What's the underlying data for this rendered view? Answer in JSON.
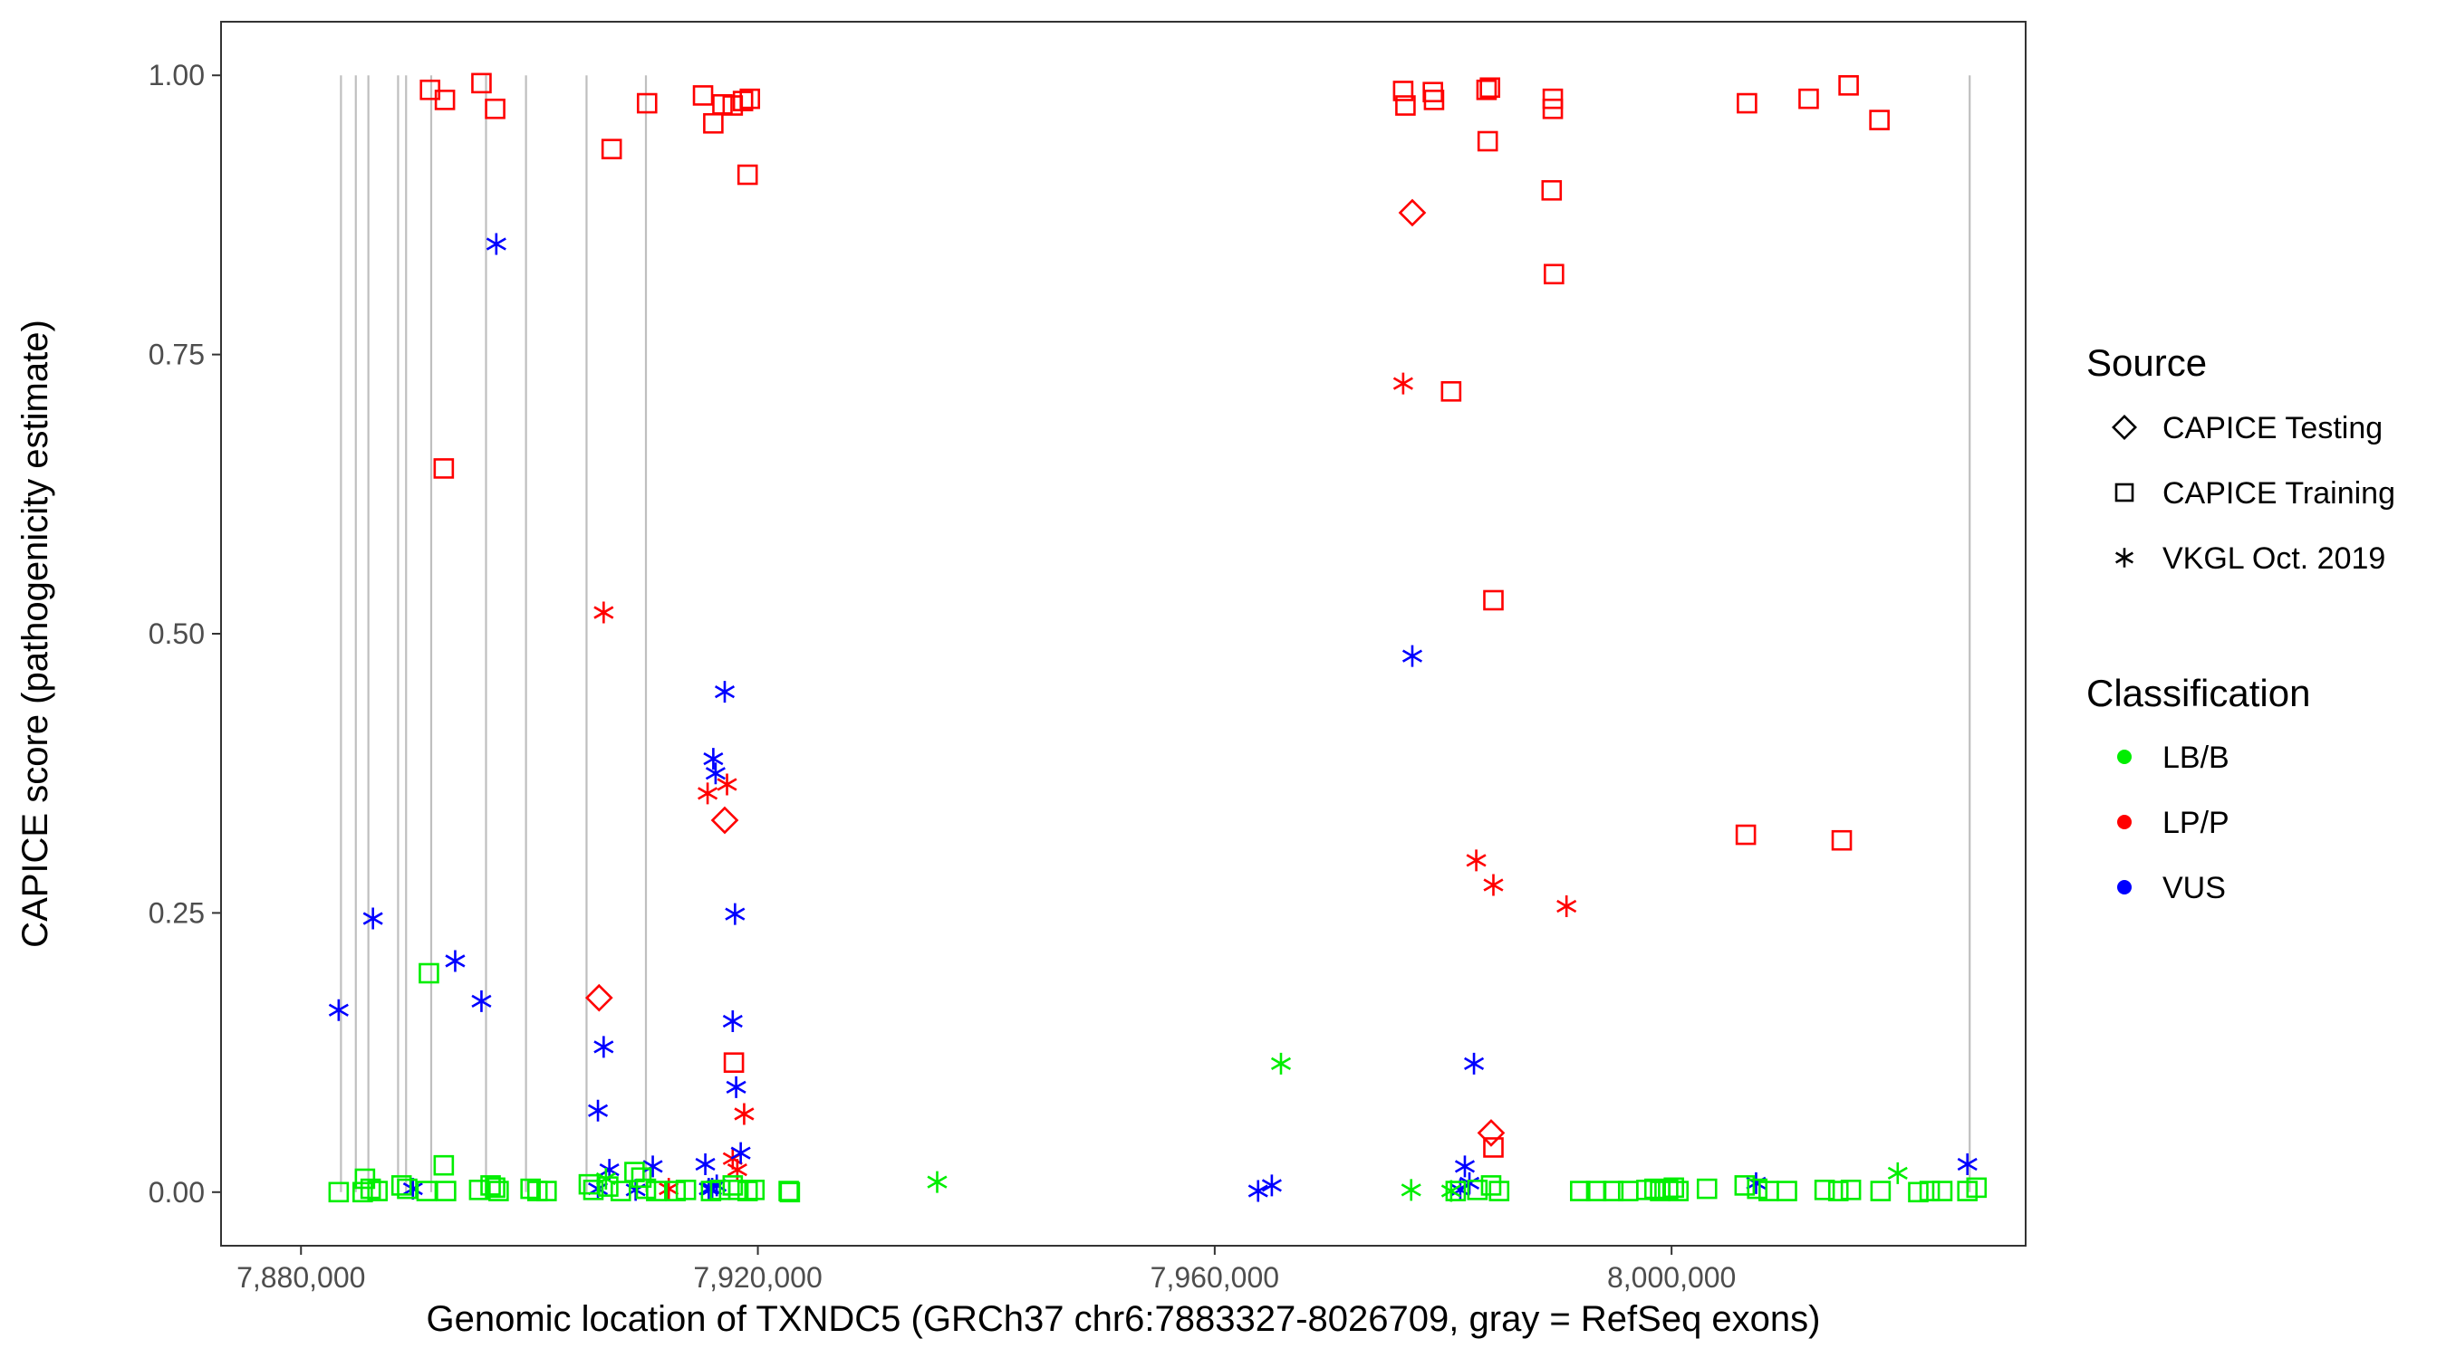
{
  "chart_data": {
    "type": "scatter",
    "title": "",
    "xlabel": "Genomic location of TXNDC5 (GRCh37 chr6:7883327-8026709, gray = RefSeq exons)",
    "ylabel": "CAPICE score (pathogenicity estimate)",
    "xlim": [
      7873000,
      8031000
    ],
    "ylim": [
      -0.048,
      1.048
    ],
    "x_ticks": [
      7880000,
      7920000,
      7960000,
      8000000
    ],
    "x_tick_labels": [
      "7,880,000",
      "7,920,000",
      "7,960,000",
      "8,000,000"
    ],
    "y_ticks": [
      0,
      0.25,
      0.5,
      0.75,
      1.0
    ],
    "y_tick_labels": [
      "0.00",
      "0.25",
      "0.50",
      "0.75",
      "1.00"
    ],
    "grid": false,
    "legend_position": "right",
    "exons": [
      7883500,
      7884800,
      7885900,
      7888500,
      7889200,
      7891400,
      7896200,
      7899700,
      7905000,
      7910200,
      8026100
    ],
    "exon_color": "#bfbfbf",
    "legend": {
      "source_title": "Source",
      "source_entries": [
        {
          "label": "CAPICE Testing",
          "shape": "diamond"
        },
        {
          "label": "CAPICE Training",
          "shape": "square"
        },
        {
          "label": "VKGL Oct. 2019",
          "shape": "asterisk"
        }
      ],
      "class_title": "Classification",
      "class_entries": [
        {
          "label": "LB/B",
          "color": "#00ee00"
        },
        {
          "label": "LP/P",
          "color": "#ff0000"
        },
        {
          "label": "VUS",
          "color": "#0000ff"
        }
      ]
    },
    "series": [
      {
        "source": "CAPICE Training",
        "classification": "LP/P",
        "points": [
          [
            7891300,
            0.987
          ],
          [
            7892600,
            0.978
          ],
          [
            7895800,
            0.993
          ],
          [
            7897000,
            0.97
          ],
          [
            7892500,
            0.648
          ],
          [
            7907200,
            0.934
          ],
          [
            7910300,
            0.975
          ],
          [
            7915200,
            0.982
          ],
          [
            7916100,
            0.957
          ],
          [
            7916900,
            0.974
          ],
          [
            7917800,
            0.973
          ],
          [
            7918700,
            0.977
          ],
          [
            7919300,
            0.979
          ],
          [
            7919100,
            0.911
          ],
          [
            7917900,
            0.116
          ],
          [
            7976500,
            0.986
          ],
          [
            7976700,
            0.973
          ],
          [
            7979100,
            0.985
          ],
          [
            7979200,
            0.978
          ],
          [
            7980700,
            0.717
          ],
          [
            7983800,
            0.987
          ],
          [
            7984100,
            0.989
          ],
          [
            7983900,
            0.941
          ],
          [
            7984400,
            0.53
          ],
          [
            7984400,
            0.04
          ],
          [
            7989600,
            0.979
          ],
          [
            7989600,
            0.97
          ],
          [
            7989500,
            0.897
          ],
          [
            7989700,
            0.822
          ],
          [
            8006600,
            0.975
          ],
          [
            8006500,
            0.32
          ],
          [
            8012000,
            0.979
          ],
          [
            8014900,
            0.315
          ],
          [
            8015500,
            0.991
          ],
          [
            8018200,
            0.96
          ]
        ]
      },
      {
        "source": "CAPICE Testing",
        "classification": "LP/P",
        "points": [
          [
            7977300,
            0.877
          ],
          [
            7906100,
            0.174
          ],
          [
            7917100,
            0.333
          ],
          [
            7984200,
            0.053
          ]
        ]
      },
      {
        "source": "VKGL Oct. 2019",
        "classification": "LP/P",
        "points": [
          [
            7906500,
            0.519
          ],
          [
            7915600,
            0.357
          ],
          [
            7917300,
            0.365
          ],
          [
            7918800,
            0.07
          ],
          [
            7917800,
            0.03
          ],
          [
            7918200,
            0.02
          ],
          [
            7912200,
            0.003
          ],
          [
            7976500,
            0.724
          ],
          [
            7982900,
            0.297
          ],
          [
            7984400,
            0.275
          ],
          [
            7990800,
            0.256
          ]
        ]
      },
      {
        "source": "VKGL Oct. 2019",
        "classification": "VUS",
        "points": [
          [
            7897100,
            0.849
          ],
          [
            7883300,
            0.163
          ],
          [
            7886300,
            0.245
          ],
          [
            7893500,
            0.207
          ],
          [
            7895800,
            0.171
          ],
          [
            7889800,
            0.003
          ],
          [
            7906000,
            0.073
          ],
          [
            7906500,
            0.13
          ],
          [
            7906000,
            0.003
          ],
          [
            7907000,
            0.02
          ],
          [
            7909300,
            0.002
          ],
          [
            7910800,
            0.023
          ],
          [
            7915400,
            0.025
          ],
          [
            7916000,
            0.003
          ],
          [
            7916400,
            0.006
          ],
          [
            7916100,
            0.388
          ],
          [
            7916300,
            0.375
          ],
          [
            7917100,
            0.448
          ],
          [
            7918000,
            0.249
          ],
          [
            7917800,
            0.153
          ],
          [
            7918100,
            0.094
          ],
          [
            7918500,
            0.035
          ],
          [
            7915700,
            0.003
          ],
          [
            7977300,
            0.48
          ],
          [
            7982700,
            0.115
          ],
          [
            7981900,
            0.023
          ],
          [
            7982300,
            0.008
          ],
          [
            7981500,
            0.002
          ],
          [
            7963800,
            0.001
          ],
          [
            7965000,
            0.006
          ],
          [
            8007400,
            0.008
          ],
          [
            8025900,
            0.025
          ]
        ]
      },
      {
        "source": "VKGL Oct. 2019",
        "classification": "LB/B",
        "points": [
          [
            7935700,
            0.009
          ],
          [
            7965800,
            0.115
          ],
          [
            7977200,
            0.002
          ],
          [
            7980700,
            0.001
          ],
          [
            8019800,
            0.017
          ],
          [
            7906700,
            0.012
          ]
        ]
      },
      {
        "source": "CAPICE Training",
        "classification": "LB/B",
        "points": [
          [
            7883300,
            0.0
          ],
          [
            7885400,
            0.0
          ],
          [
            7885600,
            0.012
          ],
          [
            7886100,
            0.003
          ],
          [
            7886700,
            0.001
          ],
          [
            7888800,
            0.006
          ],
          [
            7889300,
            0.003
          ],
          [
            7891000,
            0.001
          ],
          [
            7891200,
            0.196
          ],
          [
            7892500,
            0.024
          ],
          [
            7892700,
            0.001
          ],
          [
            7895600,
            0.002
          ],
          [
            7896600,
            0.006
          ],
          [
            7897000,
            0.004
          ],
          [
            7897300,
            0.001
          ],
          [
            7900100,
            0.003
          ],
          [
            7900700,
            0.001
          ],
          [
            7901500,
            0.001
          ],
          [
            7905200,
            0.007
          ],
          [
            7905600,
            0.002
          ],
          [
            7906900,
            0.005
          ],
          [
            7908000,
            0.001
          ],
          [
            7909200,
            0.018
          ],
          [
            7909800,
            0.013
          ],
          [
            7910200,
            0.003
          ],
          [
            7911100,
            0.001
          ],
          [
            7912800,
            0.001
          ],
          [
            7913700,
            0.002
          ],
          [
            7915900,
            0.001
          ],
          [
            7916700,
            0.002
          ],
          [
            7917800,
            0.006
          ],
          [
            7918300,
            0.002
          ],
          [
            7919100,
            0.001
          ],
          [
            7919700,
            0.002
          ],
          [
            7922700,
            0.001
          ],
          [
            7922800,
            0.0
          ],
          [
            7981100,
            0.001
          ],
          [
            7983000,
            0.002
          ],
          [
            7984200,
            0.006
          ],
          [
            7984900,
            0.001
          ],
          [
            7992000,
            0.001
          ],
          [
            7993400,
            0.001
          ],
          [
            7994900,
            0.001
          ],
          [
            7996200,
            0.001
          ],
          [
            7997800,
            0.002
          ],
          [
            7998500,
            0.003
          ],
          [
            7999000,
            0.001
          ],
          [
            7999700,
            0.002
          ],
          [
            8000200,
            0.004
          ],
          [
            8000600,
            0.001
          ],
          [
            8003100,
            0.003
          ],
          [
            8006400,
            0.006
          ],
          [
            8007500,
            0.003
          ],
          [
            8008500,
            0.001
          ],
          [
            8010100,
            0.001
          ],
          [
            8013400,
            0.002
          ],
          [
            8014600,
            0.001
          ],
          [
            8015700,
            0.002
          ],
          [
            8018300,
            0.001
          ],
          [
            8021600,
            0.0
          ],
          [
            8022600,
            0.001
          ],
          [
            8023700,
            0.001
          ],
          [
            8025900,
            0.001
          ],
          [
            8026700,
            0.004
          ]
        ]
      }
    ]
  }
}
